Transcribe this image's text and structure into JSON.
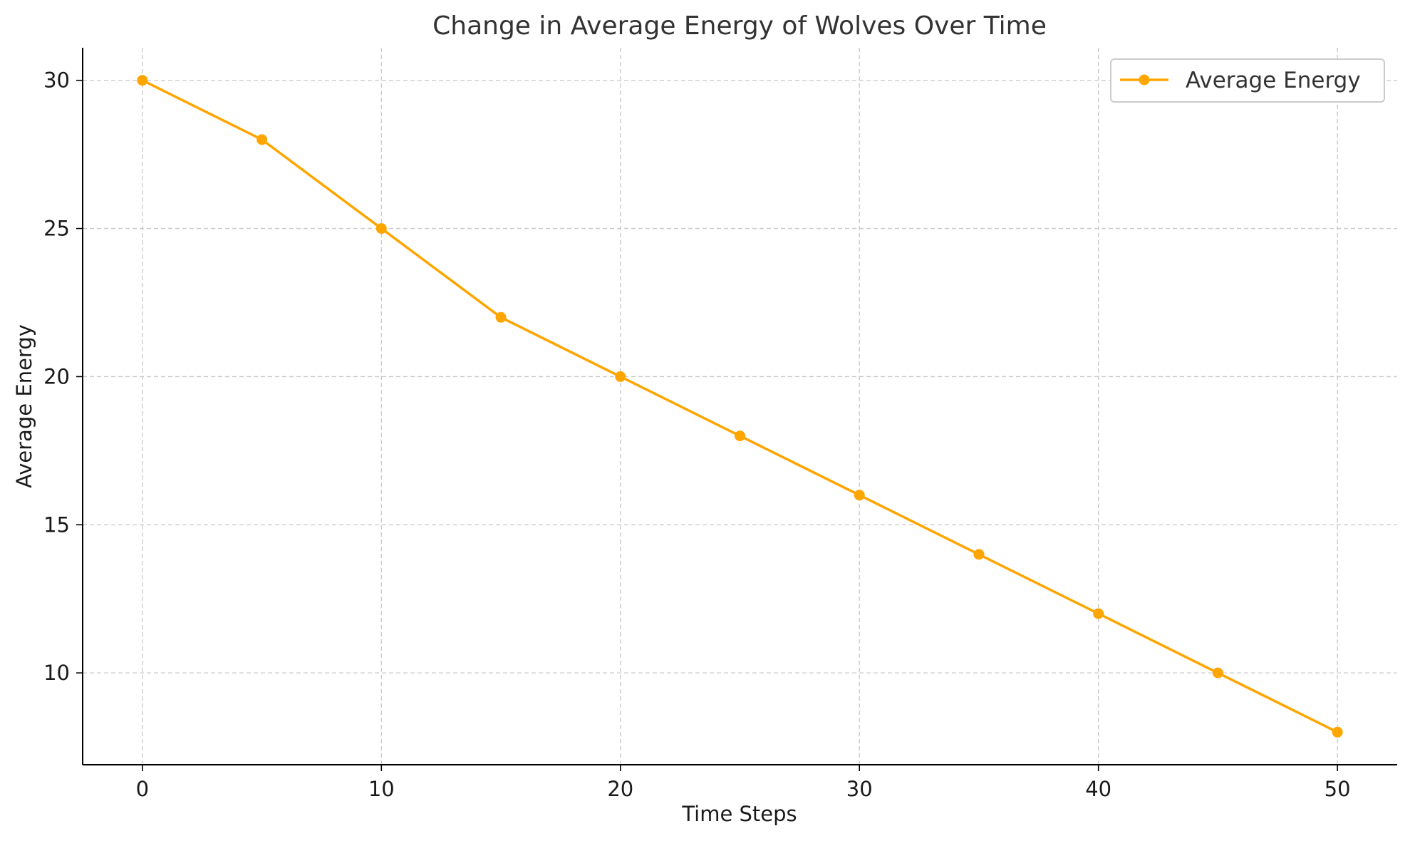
{
  "chart_data": {
    "type": "line",
    "title": "Change in Average Energy of Wolves Over Time",
    "xlabel": "Time Steps",
    "ylabel": "Average Energy",
    "x": [
      0,
      5,
      10,
      15,
      20,
      25,
      30,
      35,
      40,
      45,
      50
    ],
    "series": [
      {
        "name": "Average Energy",
        "color": "#FFA500",
        "marker": "circle",
        "values": [
          30,
          28,
          25,
          22,
          20,
          18,
          16,
          14,
          12,
          10,
          8
        ]
      }
    ],
    "xlim": [
      -2.5,
      52.5
    ],
    "ylim": [
      6.9,
      31.1
    ],
    "xticks": [
      0,
      10,
      20,
      30,
      40,
      50
    ],
    "yticks": [
      10,
      15,
      20,
      25,
      30
    ],
    "grid": true,
    "grid_style": "dashed",
    "legend_position": "upper right"
  }
}
